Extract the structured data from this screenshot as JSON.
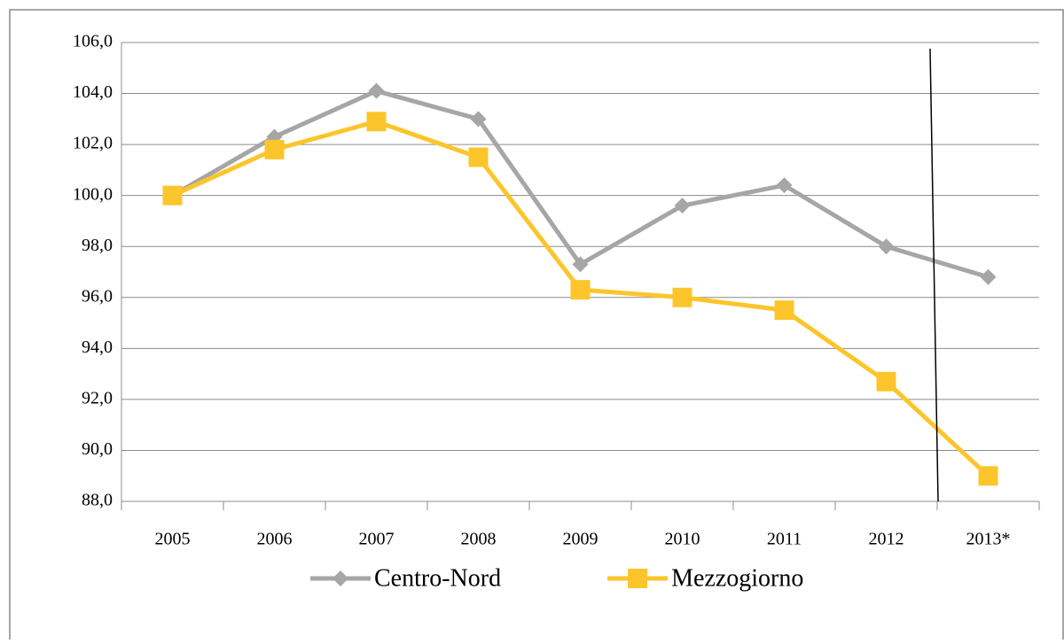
{
  "chart_data": {
    "type": "line",
    "categories": [
      "2005",
      "2006",
      "2007",
      "2008",
      "2009",
      "2010",
      "2011",
      "2012",
      "2013*"
    ],
    "series": [
      {
        "name": "Centro-Nord",
        "color": "#a6a6a6",
        "marker": "diamond",
        "values": [
          100.0,
          102.3,
          104.1,
          103.0,
          97.3,
          99.6,
          100.4,
          98.0,
          96.8
        ]
      },
      {
        "name": "Mezzogiorno",
        "color": "#fcc52b",
        "marker": "square",
        "values": [
          100.0,
          101.8,
          102.9,
          101.5,
          96.3,
          96.0,
          95.5,
          92.7,
          89.0
        ]
      }
    ],
    "ylim": [
      88,
      106
    ],
    "yticks": [
      {
        "value": 88,
        "label": "88,0"
      },
      {
        "value": 90,
        "label": "90,0"
      },
      {
        "value": 92,
        "label": "92,0"
      },
      {
        "value": 94,
        "label": "94,0"
      },
      {
        "value": 96,
        "label": "96,0"
      },
      {
        "value": 98,
        "label": "98,0"
      },
      {
        "value": 100,
        "label": "100,0"
      },
      {
        "value": 102,
        "label": "102,0"
      },
      {
        "value": 104,
        "label": "104,0"
      },
      {
        "value": 106,
        "label": "106,0"
      }
    ],
    "grid": true,
    "legend": "bottom"
  }
}
